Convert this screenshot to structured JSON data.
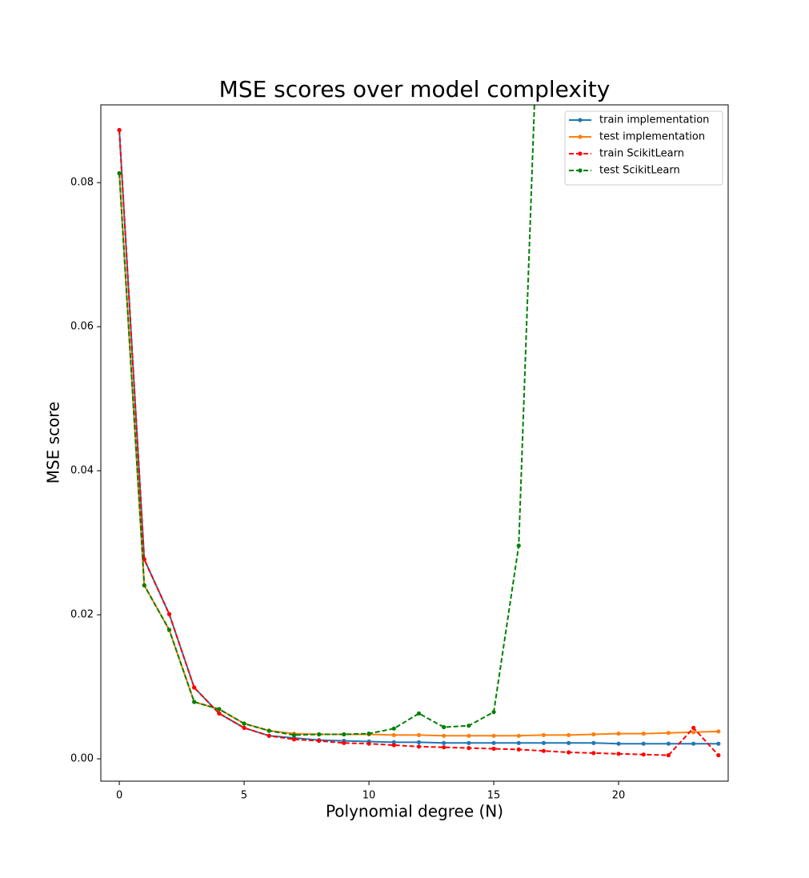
{
  "chart_data": {
    "type": "line",
    "title": "MSE scores over model complexity",
    "xlabel": "Polynomial degree (N)",
    "ylabel": "MSE score",
    "x": [
      0,
      1,
      2,
      3,
      4,
      5,
      6,
      7,
      8,
      9,
      10,
      11,
      12,
      13,
      14,
      15,
      16,
      17,
      18,
      19,
      20,
      21,
      22,
      23,
      24
    ],
    "series": [
      {
        "name": "train implementation",
        "color": "#1f77b4",
        "linestyle": "solid",
        "values": [
          0.0873,
          0.0277,
          0.0201,
          0.0099,
          0.0063,
          0.0043,
          0.0032,
          0.0029,
          0.0026,
          0.0025,
          0.0024,
          0.0023,
          0.0023,
          0.0022,
          0.0022,
          0.0022,
          0.0022,
          0.0022,
          0.0022,
          0.0022,
          0.0021,
          0.0021,
          0.0021,
          0.0021,
          0.0021
        ]
      },
      {
        "name": "test implementation",
        "color": "#ff7f0e",
        "linestyle": "solid",
        "values": [
          0.0813,
          0.0241,
          0.0179,
          0.0079,
          0.0069,
          0.0049,
          0.0039,
          0.0035,
          0.0034,
          0.0034,
          0.0034,
          0.0033,
          0.0033,
          0.0032,
          0.0032,
          0.0032,
          0.0032,
          0.0033,
          0.0033,
          0.0034,
          0.0035,
          0.0035,
          0.0036,
          0.0037,
          0.0038
        ]
      },
      {
        "name": "train ScikitLearn",
        "color": "#ff0000",
        "linestyle": "dashed",
        "values": [
          0.0873,
          0.0277,
          0.0201,
          0.0099,
          0.0063,
          0.0043,
          0.0032,
          0.0027,
          0.0025,
          0.0022,
          0.0021,
          0.0019,
          0.0017,
          0.0016,
          0.0015,
          0.0014,
          0.0013,
          0.0011,
          0.0009,
          0.0008,
          0.0007,
          0.0006,
          0.0005,
          0.0043,
          0.0005
        ]
      },
      {
        "name": "test ScikitLearn",
        "color": "#008000",
        "linestyle": "dashed",
        "values": [
          0.0813,
          0.0241,
          0.0179,
          0.0079,
          0.0069,
          0.0049,
          0.0039,
          0.0033,
          0.0034,
          0.0034,
          0.0035,
          0.0042,
          0.0063,
          0.0044,
          0.0046,
          0.0065,
          0.0296,
          0.127,
          null,
          null,
          null,
          null,
          null,
          null,
          null
        ]
      }
    ],
    "xlim": [
      -0.74,
      24.39
    ],
    "ylim": [
      -0.0031,
      0.0908
    ],
    "xticks": [
      0,
      5,
      10,
      15,
      20
    ],
    "yticks": [
      {
        "value": 0,
        "label": "0.00"
      },
      {
        "value": 0.02,
        "label": "0.02"
      },
      {
        "value": 0.04,
        "label": "0.04"
      },
      {
        "value": 0.06,
        "label": "0.06"
      },
      {
        "value": 0.08,
        "label": "0.08"
      }
    ],
    "legend": "upper right",
    "grid": false
  }
}
